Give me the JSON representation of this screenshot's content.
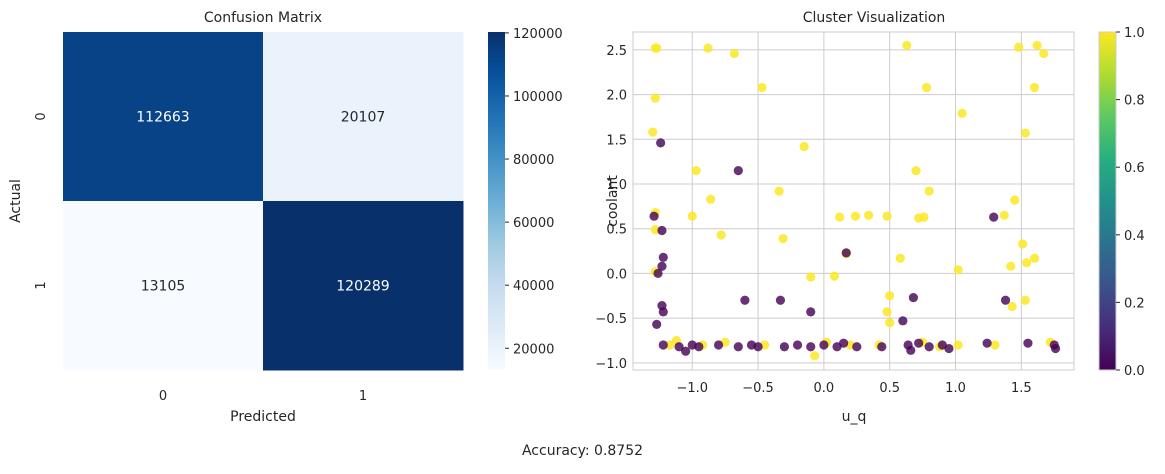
{
  "caption": "Accuracy: 0.8752",
  "chart_data": [
    {
      "type": "heatmap",
      "title": "Confusion Matrix",
      "xlabel": "Predicted",
      "ylabel": "Actual",
      "x_categories": [
        "0",
        "1"
      ],
      "y_categories": [
        "0",
        "1"
      ],
      "values": [
        [
          112663,
          20107
        ],
        [
          13105,
          120289
        ]
      ],
      "colormap": "Blues",
      "colorbar": {
        "range": [
          13105,
          120289
        ],
        "ticks": [
          20000,
          40000,
          60000,
          80000,
          100000,
          120000
        ]
      },
      "annotations": true
    },
    {
      "type": "scatter",
      "title": "Cluster Visualization",
      "xlabel": "u_q",
      "ylabel": "coolant",
      "xlim": [
        -1.45,
        1.9
      ],
      "ylim": [
        -1.08,
        2.7
      ],
      "xticks": [
        -1.0,
        -0.5,
        0.0,
        0.5,
        1.0,
        1.5
      ],
      "yticks": [
        -1.0,
        -0.5,
        0.0,
        0.5,
        1.0,
        1.5,
        2.0,
        2.5
      ],
      "grid": true,
      "colormap": "viridis",
      "colorbar": {
        "range": [
          0.0,
          1.0
        ],
        "ticks": [
          0.0,
          0.2,
          0.4,
          0.6,
          0.8,
          1.0
        ]
      },
      "points_class_1": [
        [
          -1.27,
          2.52
        ],
        [
          -1.28,
          2.52
        ],
        [
          -0.88,
          2.52
        ],
        [
          -0.68,
          2.46
        ],
        [
          -0.47,
          2.08
        ],
        [
          0.63,
          2.55
        ],
        [
          0.78,
          2.08
        ],
        [
          1.48,
          2.53
        ],
        [
          1.62,
          2.55
        ],
        [
          1.67,
          2.46
        ],
        [
          1.6,
          2.08
        ],
        [
          -1.28,
          1.96
        ],
        [
          -1.3,
          1.58
        ],
        [
          1.05,
          1.79
        ],
        [
          1.53,
          1.57
        ],
        [
          -0.15,
          1.42
        ],
        [
          -0.97,
          1.15
        ],
        [
          0.7,
          1.15
        ],
        [
          -0.86,
          0.83
        ],
        [
          -0.34,
          0.92
        ],
        [
          0.8,
          0.92
        ],
        [
          1.45,
          0.82
        ],
        [
          -1.28,
          0.68
        ],
        [
          -1.0,
          0.64
        ],
        [
          0.12,
          0.63
        ],
        [
          0.24,
          0.64
        ],
        [
          0.34,
          0.65
        ],
        [
          0.48,
          0.64
        ],
        [
          0.72,
          0.62
        ],
        [
          0.76,
          0.63
        ],
        [
          1.37,
          0.65
        ],
        [
          -1.28,
          0.49
        ],
        [
          -0.78,
          0.43
        ],
        [
          -0.31,
          0.39
        ],
        [
          1.51,
          0.33
        ],
        [
          0.17,
          0.22
        ],
        [
          -1.28,
          0.02
        ],
        [
          -0.1,
          -0.04
        ],
        [
          0.08,
          -0.03
        ],
        [
          0.58,
          0.17
        ],
        [
          1.02,
          0.04
        ],
        [
          1.6,
          0.17
        ],
        [
          1.42,
          0.08
        ],
        [
          1.54,
          0.12
        ],
        [
          0.5,
          -0.25
        ],
        [
          1.43,
          -0.37
        ],
        [
          1.53,
          -0.3
        ],
        [
          0.48,
          -0.43
        ],
        [
          -1.17,
          -0.8
        ],
        [
          -1.12,
          -0.75
        ],
        [
          -0.92,
          -0.8
        ],
        [
          -0.75,
          -0.77
        ],
        [
          -0.45,
          -0.8
        ],
        [
          0.02,
          -0.77
        ],
        [
          0.2,
          -0.8
        ],
        [
          0.42,
          -0.8
        ],
        [
          0.5,
          -0.55
        ],
        [
          0.75,
          -0.77
        ],
        [
          0.88,
          -0.82
        ],
        [
          1.02,
          -0.8
        ],
        [
          1.3,
          -0.8
        ],
        [
          1.72,
          -0.77
        ],
        [
          -0.07,
          -0.92
        ]
      ],
      "points_class_0": [
        [
          -1.24,
          1.46
        ],
        [
          -0.65,
          1.15
        ],
        [
          -1.29,
          0.64
        ],
        [
          -1.23,
          0.48
        ],
        [
          -1.22,
          0.18
        ],
        [
          -1.23,
          0.08
        ],
        [
          -1.26,
          0.0
        ],
        [
          0.17,
          0.23
        ],
        [
          1.29,
          0.63
        ],
        [
          -1.27,
          -0.57
        ],
        [
          -1.23,
          -0.36
        ],
        [
          -1.22,
          -0.43
        ],
        [
          -0.6,
          -0.3
        ],
        [
          -0.33,
          -0.3
        ],
        [
          -0.1,
          -0.43
        ],
        [
          0.6,
          -0.53
        ],
        [
          0.68,
          -0.27
        ],
        [
          1.38,
          -0.3
        ],
        [
          -1.22,
          -0.8
        ],
        [
          -1.1,
          -0.82
        ],
        [
          -1.05,
          -0.87
        ],
        [
          -1.0,
          -0.8
        ],
        [
          -0.95,
          -0.82
        ],
        [
          -0.8,
          -0.8
        ],
        [
          -0.65,
          -0.82
        ],
        [
          -0.55,
          -0.8
        ],
        [
          -0.5,
          -0.82
        ],
        [
          -0.3,
          -0.82
        ],
        [
          -0.2,
          -0.8
        ],
        [
          -0.1,
          -0.82
        ],
        [
          0.0,
          -0.8
        ],
        [
          0.1,
          -0.82
        ],
        [
          0.15,
          -0.78
        ],
        [
          0.25,
          -0.82
        ],
        [
          0.44,
          -0.82
        ],
        [
          0.64,
          -0.8
        ],
        [
          0.66,
          -0.86
        ],
        [
          0.72,
          -0.78
        ],
        [
          0.8,
          -0.82
        ],
        [
          0.9,
          -0.8
        ],
        [
          0.95,
          -0.84
        ],
        [
          1.24,
          -0.78
        ],
        [
          1.55,
          -0.78
        ],
        [
          1.75,
          -0.8
        ],
        [
          1.76,
          -0.84
        ]
      ]
    }
  ]
}
